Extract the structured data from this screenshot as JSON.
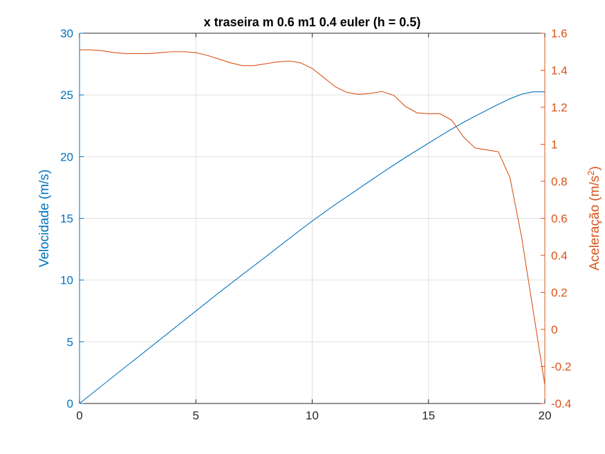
{
  "chart_data": {
    "type": "line",
    "title": "x traseira m 0.6 m1 0.4 euler (h = 0.5)",
    "xlabel": "",
    "xlim": [
      0,
      20
    ],
    "x_ticks": [
      0,
      5,
      10,
      15,
      20
    ],
    "grid": true,
    "left_axis": {
      "ylabel": "Velocidade (m/s)",
      "ylim": [
        0,
        30
      ],
      "ticks": [
        0,
        5,
        10,
        15,
        20,
        25,
        30
      ],
      "color": "#0072BD"
    },
    "right_axis": {
      "ylabel_main": "Aceleração (m/s",
      "ylabel_sup": "2",
      "ylabel_end": ")",
      "ylim": [
        -0.4,
        1.6
      ],
      "ticks": [
        "-0.4",
        "-0.2",
        "0",
        "0.2",
        "0.4",
        "0.6",
        "0.8",
        "1",
        "1.2",
        "1.4",
        "1.6"
      ],
      "color": "#D95319"
    },
    "series": [
      {
        "axis": "left",
        "color": "#0072BD",
        "x": [
          0,
          0.5,
          1,
          1.5,
          2,
          2.5,
          3,
          3.5,
          4,
          4.5,
          5,
          5.5,
          6,
          6.5,
          7,
          7.5,
          8,
          8.5,
          9,
          9.5,
          10,
          10.5,
          11,
          11.5,
          12,
          12.5,
          13,
          13.5,
          14,
          14.5,
          15,
          15.5,
          16,
          16.5,
          17,
          17.5,
          18,
          18.5,
          19,
          19.5,
          20
        ],
        "values": [
          0,
          0.75,
          1.5,
          2.25,
          3.0,
          3.74,
          4.49,
          5.24,
          5.99,
          6.74,
          7.49,
          8.24,
          8.99,
          9.71,
          10.44,
          11.16,
          11.88,
          12.61,
          13.34,
          14.07,
          14.78,
          15.46,
          16.13,
          16.77,
          17.41,
          18.05,
          18.69,
          19.31,
          19.92,
          20.51,
          21.09,
          21.67,
          22.24,
          22.78,
          23.27,
          23.76,
          24.24,
          24.69,
          25.06,
          25.25,
          25.25
        ]
      },
      {
        "axis": "right",
        "color": "#D95319",
        "x": [
          0,
          0.5,
          1,
          1.5,
          2,
          2.5,
          3,
          3.5,
          4,
          4.5,
          5,
          5.5,
          6,
          6.5,
          7,
          7.5,
          8,
          8.5,
          9,
          9.5,
          10,
          10.5,
          11,
          11.5,
          12,
          12.5,
          13,
          13.5,
          14,
          14.5,
          15,
          15.5,
          16,
          16.5,
          17,
          17.5,
          18,
          18.5,
          19,
          19.5,
          20
        ],
        "values": [
          1.51,
          1.51,
          1.505,
          1.495,
          1.49,
          1.49,
          1.49,
          1.495,
          1.5,
          1.5,
          1.495,
          1.48,
          1.46,
          1.44,
          1.425,
          1.425,
          1.435,
          1.445,
          1.45,
          1.44,
          1.41,
          1.36,
          1.31,
          1.28,
          1.27,
          1.275,
          1.285,
          1.265,
          1.205,
          1.17,
          1.165,
          1.165,
          1.13,
          1.04,
          0.98,
          0.97,
          0.96,
          0.82,
          0.5,
          0.1,
          -0.3
        ]
      }
    ]
  }
}
